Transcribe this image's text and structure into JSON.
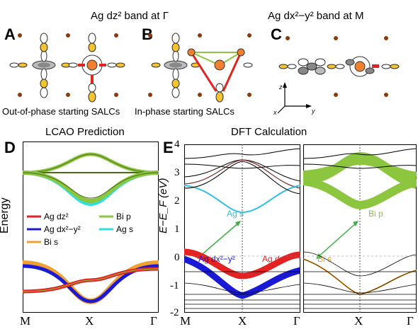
{
  "top_titles": {
    "gamma": "Ag dz² band at Γ",
    "m": "Ag dx²−y² band at M"
  },
  "panels": {
    "a": "A",
    "b": "B",
    "c": "C",
    "d": "D",
    "e": "E"
  },
  "captions": {
    "a": "Out-of-phase starting SALCs",
    "b": "In-phase starting SALCs"
  },
  "axes3d": {
    "z": "z",
    "y": "y",
    "x": "x"
  },
  "lcao": {
    "title": "LCAO Prediction",
    "ylabel": "Energy",
    "legend": [
      {
        "label": "Ag dz²",
        "color": "#e32222"
      },
      {
        "label": "Ag dx²−y²",
        "color": "#1a1ad6"
      },
      {
        "label": "Bi s",
        "color": "#f0a030"
      },
      {
        "label": "Bi p",
        "color": "#8cc63f"
      },
      {
        "label": "Ag s",
        "color": "#2ee0e6"
      }
    ],
    "xticks": [
      "M",
      "X",
      "Γ"
    ]
  },
  "dft": {
    "title": "DFT Calculation",
    "ylabel": "E−E_F (eV)",
    "yticks": [
      "4",
      "3",
      "2",
      "1",
      "0",
      "-1",
      "-2"
    ],
    "xticks_left": [
      "M",
      "X",
      "Γ"
    ],
    "xticks_right": [
      "M",
      "X",
      "Γ"
    ],
    "labels": {
      "ag_s": "Ag s",
      "ag_dx2y2": "Ag dx²−y²",
      "ag_dz2": "Ag dz²",
      "bi_p": "Bi p",
      "bi_s": "Bi s"
    }
  },
  "colors": {
    "red": "#e32222",
    "blue": "#1a1ad6",
    "orange": "#f0a030",
    "green": "#8cc63f",
    "cyan": "#2ee0e6",
    "arrow": "#3cb043",
    "lobe": "#f4c430",
    "brown": "#8b3a0e"
  }
}
